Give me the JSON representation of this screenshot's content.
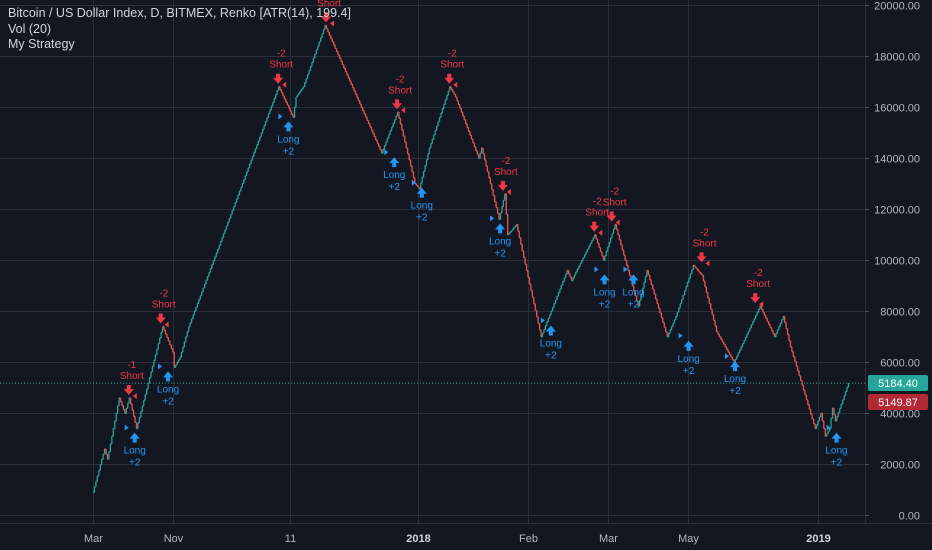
{
  "legend": {
    "title": "Bitcoin / US Dollar Index, D, BITMEX, Renko [ATR(14), 199.4]",
    "volume": "Vol (20)",
    "strategy": "My Strategy"
  },
  "colors": {
    "background": "#131722",
    "grid": "#2a2e39",
    "up": "#26a69a",
    "down": "#ef5350",
    "long": "#2196f3",
    "short": "#f23645",
    "last_price": "#26a69a",
    "second_price": "#b22833"
  },
  "price_tags": {
    "last": "5184.40",
    "second": "5149.87"
  },
  "chart_data": {
    "type": "line",
    "style": "renko",
    "box_size": 199.4,
    "y_ticks": [
      0,
      2000,
      4000,
      6000,
      8000,
      10000,
      12000,
      14000,
      16000,
      18000,
      20000
    ],
    "y_tick_labels": [
      "0.00",
      "2000.00",
      "4000.00",
      "6000.00",
      "8000.00",
      "10000.00",
      "12000.00",
      "14000.00",
      "16000.00",
      "18000.00",
      "20000.00"
    ],
    "ylim": [
      -300,
      20200
    ],
    "x_ticks": [
      {
        "label": "Mar",
        "bold": false,
        "idx": 0
      },
      {
        "label": "Nov",
        "bold": false,
        "idx": 55
      },
      {
        "label": "11",
        "bold": false,
        "idx": 136
      },
      {
        "label": "2018",
        "bold": true,
        "idx": 224
      },
      {
        "label": "Feb",
        "bold": false,
        "idx": 300
      },
      {
        "label": "Mar",
        "bold": false,
        "idx": 355
      },
      {
        "label": "May",
        "bold": false,
        "idx": 410
      },
      {
        "label": "2019",
        "bold": true,
        "idx": 500
      }
    ],
    "grid": true,
    "x_extent": 521,
    "waypoints": [
      [
        0,
        900
      ],
      [
        6,
        2200
      ],
      [
        8,
        2600
      ],
      [
        10,
        2200
      ],
      [
        18,
        4600
      ],
      [
        22,
        4000
      ],
      [
        25,
        4600
      ],
      [
        30,
        3400
      ],
      [
        48,
        7400
      ],
      [
        55,
        6400
      ],
      [
        56,
        5800
      ],
      [
        60,
        6200
      ],
      [
        66,
        7400
      ],
      [
        128,
        16800
      ],
      [
        138,
        15600
      ],
      [
        140,
        16400
      ],
      [
        145,
        16800
      ],
      [
        160,
        19200
      ],
      [
        199,
        14200
      ],
      [
        210,
        15800
      ],
      [
        222,
        13000
      ],
      [
        225,
        12800
      ],
      [
        232,
        14400
      ],
      [
        246,
        16800
      ],
      [
        250,
        16400
      ],
      [
        266,
        14000
      ],
      [
        268,
        14400
      ],
      [
        280,
        11600
      ],
      [
        284,
        12600
      ],
      [
        286,
        11000
      ],
      [
        292,
        11400
      ],
      [
        309,
        7000
      ],
      [
        327,
        9600
      ],
      [
        330,
        9200
      ],
      [
        346,
        11000
      ],
      [
        352,
        10000
      ],
      [
        360,
        11400
      ],
      [
        372,
        9000
      ],
      [
        376,
        8200
      ],
      [
        382,
        9600
      ],
      [
        396,
        7000
      ],
      [
        402,
        7800
      ],
      [
        414,
        9800
      ],
      [
        420,
        9400
      ],
      [
        430,
        7200
      ],
      [
        442,
        6000
      ],
      [
        460,
        8200
      ],
      [
        470,
        7000
      ],
      [
        476,
        7800
      ],
      [
        481,
        6600
      ],
      [
        498,
        3400
      ],
      [
        502,
        4000
      ],
      [
        505,
        3100
      ],
      [
        508,
        3400
      ],
      [
        510,
        4200
      ],
      [
        512,
        3700
      ],
      [
        521,
        5184.4
      ]
    ],
    "signals": [
      {
        "type": "Short",
        "qty": "-1",
        "idx": 24,
        "price": 4600
      },
      {
        "type": "Long",
        "qty": "+2",
        "idx": 26,
        "price": 3400
      },
      {
        "type": "Short",
        "qty": "-2",
        "idx": 46,
        "price": 7400
      },
      {
        "type": "Long",
        "qty": "+2",
        "idx": 49,
        "price": 5800
      },
      {
        "type": "Short",
        "qty": "-2",
        "idx": 127,
        "price": 16800
      },
      {
        "type": "Long",
        "qty": "+2",
        "idx": 132,
        "price": 15600
      },
      {
        "type": "Short",
        "qty": "-2",
        "idx": 160,
        "price": 19200
      },
      {
        "type": "Long",
        "qty": "+2",
        "idx": 205,
        "price": 14200
      },
      {
        "type": "Short",
        "qty": "-2",
        "idx": 209,
        "price": 15800
      },
      {
        "type": "Long",
        "qty": "+2",
        "idx": 224,
        "price": 13000
      },
      {
        "type": "Short",
        "qty": "-2",
        "idx": 245,
        "price": 16800
      },
      {
        "type": "Long",
        "qty": "+2",
        "idx": 278,
        "price": 11600
      },
      {
        "type": "Short",
        "qty": "-2",
        "idx": 282,
        "price": 12600
      },
      {
        "type": "Long",
        "qty": "+2",
        "idx": 313,
        "price": 7600
      },
      {
        "type": "Short",
        "qty": "-2",
        "idx": 345,
        "price": 11000
      },
      {
        "type": "Long",
        "qty": "+2",
        "idx": 350,
        "price": 9600
      },
      {
        "type": "Short",
        "qty": "-2",
        "idx": 357,
        "price": 11400
      },
      {
        "type": "Long",
        "qty": "+2",
        "idx": 370,
        "price": 9600
      },
      {
        "type": "Long",
        "qty": "+2",
        "idx": 408,
        "price": 7000
      },
      {
        "type": "Short",
        "qty": "-2",
        "idx": 419,
        "price": 9800
      },
      {
        "type": "Long",
        "qty": "+2",
        "idx": 440,
        "price": 6200
      },
      {
        "type": "Short",
        "qty": "-2",
        "idx": 456,
        "price": 8200
      },
      {
        "type": "Long",
        "qty": "+2",
        "idx": 510,
        "price": 3400
      }
    ]
  }
}
